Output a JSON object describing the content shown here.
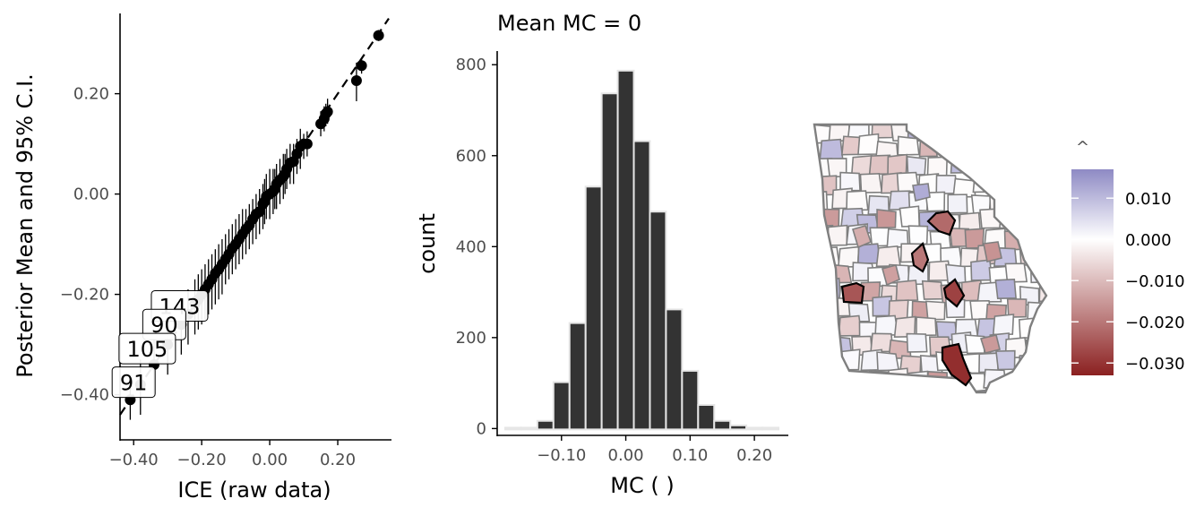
{
  "chart_data": [
    {
      "type": "scatter",
      "xlabel": "ICE (raw data)",
      "ylabel": "Posterior Mean and 95% C.I.",
      "xlim": [
        -0.44,
        0.35
      ],
      "ylim": [
        -0.49,
        0.36
      ],
      "xticks": [
        -0.4,
        -0.2,
        0.0,
        0.2
      ],
      "xtick_labels": [
        "−0.40",
        "−0.20",
        "0.00",
        "0.20"
      ],
      "yticks": [
        -0.4,
        -0.2,
        0.0,
        0.2
      ],
      "ytick_labels": [
        "−0.40",
        "−0.20",
        "0.00",
        "0.20"
      ],
      "reference_line": "dashed identity line",
      "points": [
        {
          "x": 0.32,
          "y": 0.316,
          "lo": 0.305,
          "hi": 0.327
        },
        {
          "x": 0.27,
          "y": 0.256,
          "lo": 0.24,
          "hi": 0.27
        },
        {
          "x": 0.255,
          "y": 0.226,
          "lo": 0.185,
          "hi": 0.262
        },
        {
          "x": 0.17,
          "y": 0.164,
          "lo": 0.14,
          "hi": 0.19
        },
        {
          "x": 0.165,
          "y": 0.16,
          "lo": 0.135,
          "hi": 0.18
        },
        {
          "x": 0.16,
          "y": 0.15,
          "lo": 0.125,
          "hi": 0.175
        },
        {
          "x": 0.15,
          "y": 0.14,
          "lo": 0.115,
          "hi": 0.165
        },
        {
          "x": 0.11,
          "y": 0.1,
          "lo": 0.075,
          "hi": 0.125
        },
        {
          "x": 0.1,
          "y": 0.1,
          "lo": 0.07,
          "hi": 0.12
        },
        {
          "x": 0.09,
          "y": 0.095,
          "lo": 0.05,
          "hi": 0.13
        },
        {
          "x": 0.08,
          "y": 0.08,
          "lo": 0.04,
          "hi": 0.11
        },
        {
          "x": 0.07,
          "y": 0.065,
          "lo": 0.02,
          "hi": 0.1
        },
        {
          "x": 0.06,
          "y": 0.062,
          "lo": 0.02,
          "hi": 0.1
        },
        {
          "x": 0.05,
          "y": 0.05,
          "lo": 0.01,
          "hi": 0.09
        },
        {
          "x": 0.045,
          "y": 0.04,
          "lo": -0.0,
          "hi": 0.08
        },
        {
          "x": 0.04,
          "y": 0.035,
          "lo": -0.01,
          "hi": 0.08
        },
        {
          "x": 0.03,
          "y": 0.028,
          "lo": -0.02,
          "hi": 0.07
        },
        {
          "x": 0.02,
          "y": 0.02,
          "lo": -0.03,
          "hi": 0.06
        },
        {
          "x": 0.015,
          "y": 0.01,
          "lo": -0.03,
          "hi": 0.05
        },
        {
          "x": 0.01,
          "y": 0.005,
          "lo": -0.04,
          "hi": 0.05
        },
        {
          "x": 0.0,
          "y": 0.0,
          "lo": -0.05,
          "hi": 0.05
        },
        {
          "x": -0.01,
          "y": -0.005,
          "lo": -0.05,
          "hi": 0.04
        },
        {
          "x": -0.015,
          "y": -0.015,
          "lo": -0.06,
          "hi": 0.03
        },
        {
          "x": -0.02,
          "y": -0.02,
          "lo": -0.07,
          "hi": 0.02
        },
        {
          "x": -0.03,
          "y": -0.035,
          "lo": -0.08,
          "hi": 0.01
        },
        {
          "x": -0.04,
          "y": -0.04,
          "lo": -0.09,
          "hi": 0.0
        },
        {
          "x": -0.05,
          "y": -0.05,
          "lo": -0.1,
          "hi": -0.01
        },
        {
          "x": -0.06,
          "y": -0.062,
          "lo": -0.11,
          "hi": -0.02
        },
        {
          "x": -0.07,
          "y": -0.07,
          "lo": -0.12,
          "hi": -0.03
        },
        {
          "x": -0.08,
          "y": -0.08,
          "lo": -0.13,
          "hi": -0.03
        },
        {
          "x": -0.09,
          "y": -0.09,
          "lo": -0.14,
          "hi": -0.04
        },
        {
          "x": -0.1,
          "y": -0.1,
          "lo": -0.15,
          "hi": -0.05
        },
        {
          "x": -0.11,
          "y": -0.108,
          "lo": -0.16,
          "hi": -0.06
        },
        {
          "x": -0.12,
          "y": -0.12,
          "lo": -0.17,
          "hi": -0.07
        },
        {
          "x": -0.13,
          "y": -0.13,
          "lo": -0.18,
          "hi": -0.08
        },
        {
          "x": -0.14,
          "y": -0.14,
          "lo": -0.2,
          "hi": -0.09
        },
        {
          "x": -0.15,
          "y": -0.15,
          "lo": -0.21,
          "hi": -0.1
        },
        {
          "x": -0.16,
          "y": -0.158,
          "lo": -0.22,
          "hi": -0.11
        },
        {
          "x": -0.17,
          "y": -0.17,
          "lo": -0.23,
          "hi": -0.12
        },
        {
          "x": -0.18,
          "y": -0.18,
          "lo": -0.24,
          "hi": -0.13
        },
        {
          "x": -0.19,
          "y": -0.19,
          "lo": -0.25,
          "hi": -0.14
        },
        {
          "x": -0.2,
          "y": -0.2,
          "lo": -0.26,
          "hi": -0.15
        },
        {
          "x": -0.21,
          "y": -0.21,
          "lo": -0.27,
          "hi": -0.16
        },
        {
          "x": -0.22,
          "y": -0.22,
          "lo": -0.28,
          "hi": -0.17
        },
        {
          "x": -0.24,
          "y": -0.24,
          "lo": -0.3,
          "hi": -0.19
        },
        {
          "x": -0.26,
          "y": -0.26,
          "lo": -0.32,
          "hi": -0.21
        },
        {
          "x": -0.3,
          "y": -0.3,
          "lo": -0.36,
          "hi": -0.25
        },
        {
          "x": -0.34,
          "y": -0.34,
          "lo": -0.4,
          "hi": -0.29
        },
        {
          "x": -0.38,
          "y": -0.38,
          "lo": -0.44,
          "hi": -0.33
        },
        {
          "x": -0.41,
          "y": -0.41,
          "lo": -0.45,
          "hi": -0.37
        }
      ],
      "labels": [
        {
          "text": "143",
          "x": -0.265,
          "y": -0.223
        },
        {
          "text": "90",
          "x": -0.31,
          "y": -0.26
        },
        {
          "text": "105",
          "x": -0.36,
          "y": -0.308
        },
        {
          "text": "91",
          "x": -0.4,
          "y": -0.375
        }
      ]
    },
    {
      "type": "bar",
      "title": "Mean MC = 0",
      "xlabel": "MC ( )",
      "ylabel": "count",
      "xlim": [
        -0.2,
        0.25
      ],
      "ylim": [
        -15,
        830
      ],
      "xticks": [
        -0.1,
        0.0,
        0.1,
        0.2
      ],
      "xtick_labels": [
        "−0.10",
        "0.00",
        "0.10",
        "0.20"
      ],
      "yticks": [
        0,
        200,
        400,
        600,
        800
      ],
      "ytick_labels": [
        "0",
        "200",
        "400",
        "600",
        "800"
      ],
      "bin_width": 0.025,
      "categories": [
        -0.175,
        -0.15,
        -0.125,
        -0.1,
        -0.075,
        -0.05,
        -0.025,
        0.0,
        0.025,
        0.05,
        0.075,
        0.1,
        0.125,
        0.15,
        0.175,
        0.2,
        0.225
      ],
      "values": [
        0,
        0,
        15,
        100,
        230,
        530,
        735,
        785,
        630,
        475,
        260,
        125,
        50,
        15,
        5,
        0,
        0
      ]
    },
    {
      "type": "heatmap",
      "map": "county choropleth",
      "legend_title": "^",
      "legend_ticks": [
        0.01,
        0.0,
        -0.01,
        -0.02,
        -0.03
      ],
      "legend_tick_labels": [
        "0.010",
        "0.000",
        "−0.010",
        "−0.020",
        "−0.030"
      ],
      "scale_range": [
        -0.033,
        0.017
      ],
      "colors": {
        "high": "#8E8AC4",
        "mid": "#ffffff",
        "low": "#8B2020",
        "outline": "#7f7f7f",
        "highlight_outline": "#000000"
      }
    }
  ]
}
